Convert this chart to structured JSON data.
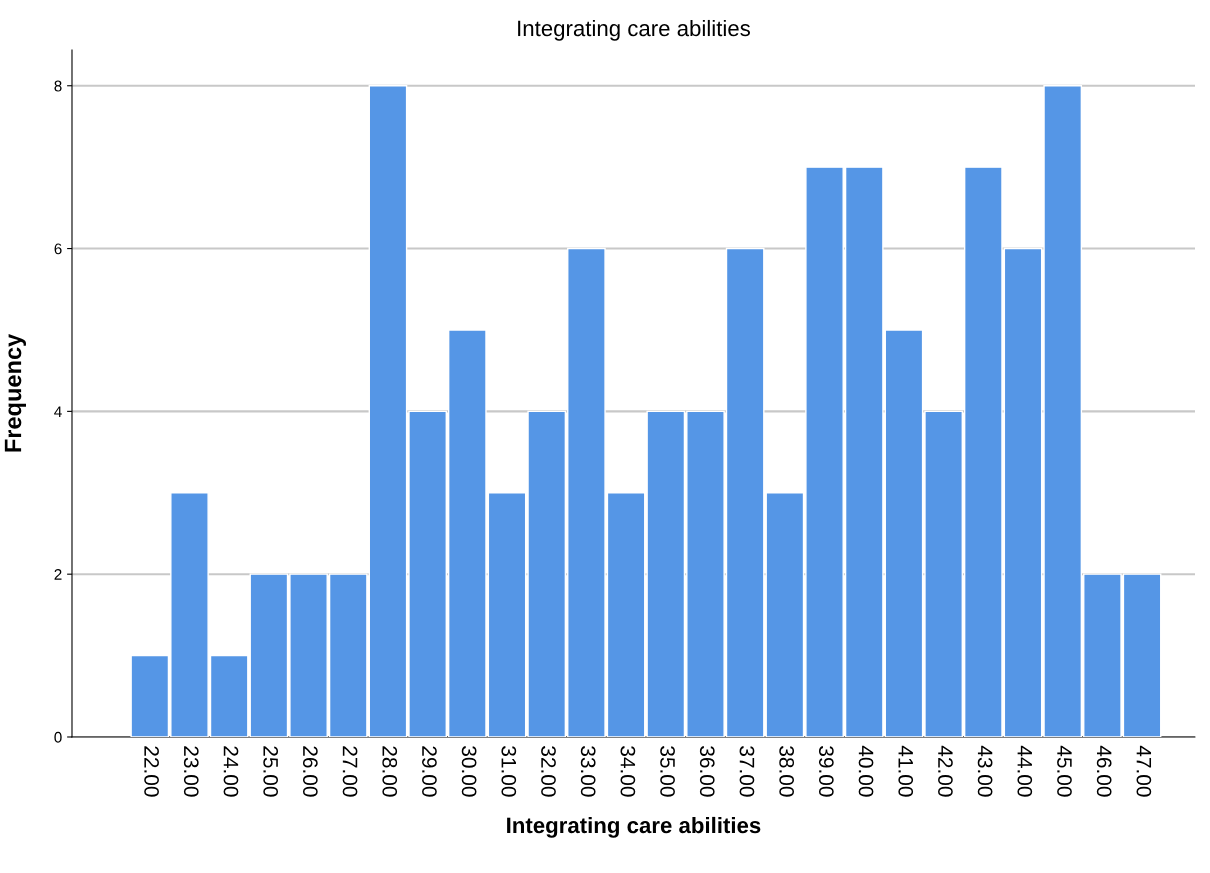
{
  "chart_data": {
    "type": "bar",
    "title": "Integrating care abilities",
    "xlabel": "Integrating care abilities",
    "ylabel": "Frequency",
    "categories": [
      "22.00",
      "23.00",
      "24.00",
      "25.00",
      "26.00",
      "27.00",
      "28.00",
      "29.00",
      "30.00",
      "31.00",
      "32.00",
      "33.00",
      "34.00",
      "35.00",
      "36.00",
      "37.00",
      "38.00",
      "39.00",
      "40.00",
      "41.00",
      "42.00",
      "43.00",
      "44.00",
      "45.00",
      "46.00",
      "47.00"
    ],
    "values": [
      1,
      3,
      1,
      2,
      2,
      2,
      8,
      4,
      5,
      3,
      4,
      6,
      3,
      4,
      4,
      6,
      3,
      7,
      7,
      5,
      4,
      7,
      6,
      8,
      2,
      2
    ],
    "color": "#5596e6",
    "ylim": [
      0,
      8.44
    ],
    "yticks": [
      0,
      2,
      4,
      6,
      8
    ],
    "grid": "y"
  }
}
